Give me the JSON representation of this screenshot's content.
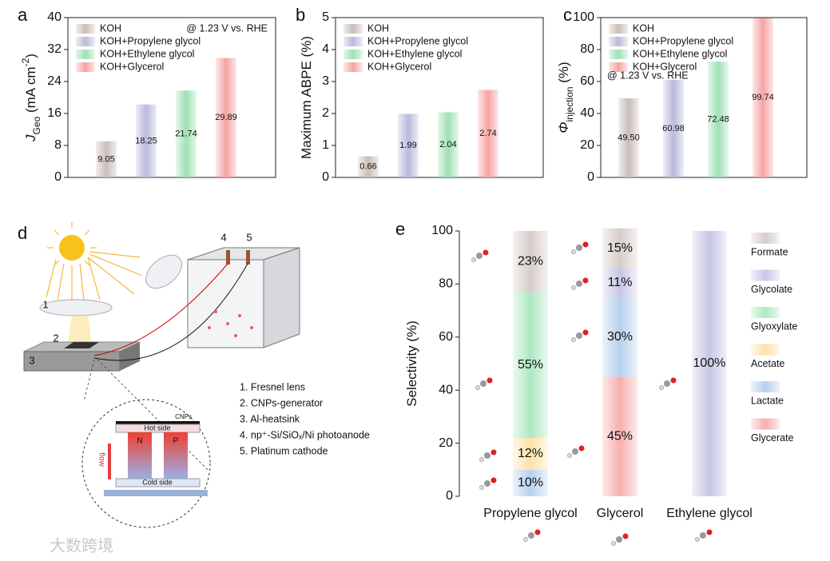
{
  "chart_data": [
    {
      "type": "bar",
      "ylabel": [
        {
          "text": "J",
          "style": "italic"
        },
        {
          "text": "Geo",
          "style": "sub"
        },
        {
          "text": " (mA cm",
          "style": "normal"
        },
        {
          "text": "-2",
          "style": "sup"
        },
        {
          "text": ")",
          "style": "normal"
        }
      ],
      "ylim": [
        0,
        40
      ],
      "yticks": [
        0,
        8,
        16,
        24,
        32,
        40
      ],
      "annotation": "@ 1.23 V vs. RHE",
      "series": [
        {
          "name": "KOH",
          "color": "#c9bdb7",
          "values": [
            9.05
          ]
        },
        {
          "name": "KOH+Propylene glycol",
          "color": "#b9b9dc",
          "values": [
            18.25
          ]
        },
        {
          "name": "KOH+Ethylene glycol",
          "color": "#9fe0b4",
          "values": [
            21.74
          ]
        },
        {
          "name": "KOH+Glycerol",
          "color": "#f6a3a3",
          "values": [
            29.89
          ]
        }
      ]
    },
    {
      "type": "bar",
      "ylabel": [
        {
          "text": "Maximum ABPE (%)",
          "style": "normal"
        }
      ],
      "ylim": [
        0,
        5
      ],
      "yticks": [
        0,
        1,
        2,
        3,
        4,
        5
      ],
      "series": [
        {
          "name": "KOH",
          "color": "#c9bdb7",
          "values": [
            0.66
          ]
        },
        {
          "name": "KOH+Propylene glycol",
          "color": "#b9b9dc",
          "values": [
            1.99
          ]
        },
        {
          "name": "KOH+Ethylene glycol",
          "color": "#9fe0b4",
          "values": [
            2.04
          ]
        },
        {
          "name": "KOH+Glycerol",
          "color": "#f6a3a3",
          "values": [
            2.74
          ]
        }
      ]
    },
    {
      "type": "bar",
      "ylabel": [
        {
          "text": "Φ",
          "style": "italic"
        },
        {
          "text": "injection",
          "style": "sub"
        },
        {
          "text": " (%)",
          "style": "normal"
        }
      ],
      "ylim": [
        0,
        100
      ],
      "yticks": [
        0,
        20,
        40,
        60,
        80,
        100
      ],
      "annotation": "@ 1.23 V vs. RHE",
      "series": [
        {
          "name": "KOH",
          "color": "#c9bdb7",
          "values": [
            49.5
          ],
          "value_labels": [
            "49.50"
          ]
        },
        {
          "name": "KOH+Propylene glycol",
          "color": "#b9b9dc",
          "values": [
            60.98
          ]
        },
        {
          "name": "KOH+Ethylene glycol",
          "color": "#9fe0b4",
          "values": [
            72.48
          ]
        },
        {
          "name": "KOH+Glycerol",
          "color": "#f6a3a3",
          "values": [
            99.74
          ]
        }
      ]
    },
    {
      "type": "stacked_bar",
      "ylabel": [
        {
          "text": "Selectivity (%)",
          "style": "normal"
        }
      ],
      "ylim": [
        0,
        100
      ],
      "yticks": [
        0,
        20,
        40,
        60,
        80,
        100
      ],
      "categories": [
        "Propylene glycol",
        "Glycerol",
        "Ethylene glycol"
      ],
      "series": [
        {
          "name": "Formate",
          "color": "#d6ccc8",
          "values": [
            23,
            15,
            null
          ],
          "value_labels": [
            "23%",
            "15%",
            null
          ]
        },
        {
          "name": "Glycolate",
          "color": "#c6c6e6",
          "values": [
            null,
            11,
            100
          ],
          "value_labels": [
            null,
            "11%",
            "100%"
          ]
        },
        {
          "name": "Glyoxylate",
          "color": "#ade8c2",
          "values": [
            55,
            null,
            null
          ],
          "value_labels": [
            "55%",
            null,
            null
          ]
        },
        {
          "name": "Acetate",
          "color": "#fde1a6",
          "values": [
            12,
            null,
            null
          ],
          "value_labels": [
            "12%",
            null,
            null
          ]
        },
        {
          "name": "Lactate",
          "color": "#b6d0ee",
          "values": [
            10,
            30,
            null
          ],
          "value_labels": [
            "10%",
            "30%",
            null
          ]
        },
        {
          "name": "Glycerate",
          "color": "#f8aeae",
          "values": [
            null,
            45,
            null
          ],
          "value_labels": [
            null,
            "45%",
            null
          ]
        }
      ]
    }
  ],
  "panel_labels": [
    "a",
    "b",
    "c",
    "d",
    "e"
  ],
  "diagram": {
    "numbers": [
      "1",
      "2",
      "3",
      "4",
      "5"
    ],
    "list": [
      "1. Fresnel lens",
      "2. CNPs-generator",
      "3. Al-heatsink",
      "4. np⁺-Si/SiOₓ/Ni photoanode",
      "5. Platinum cathode"
    ],
    "inset": {
      "top": "CNPs",
      "hot": "Hot side",
      "cold": "Cold side",
      "n": "N",
      "p": "P",
      "flow": "flow"
    }
  },
  "watermark": "大数跨境"
}
